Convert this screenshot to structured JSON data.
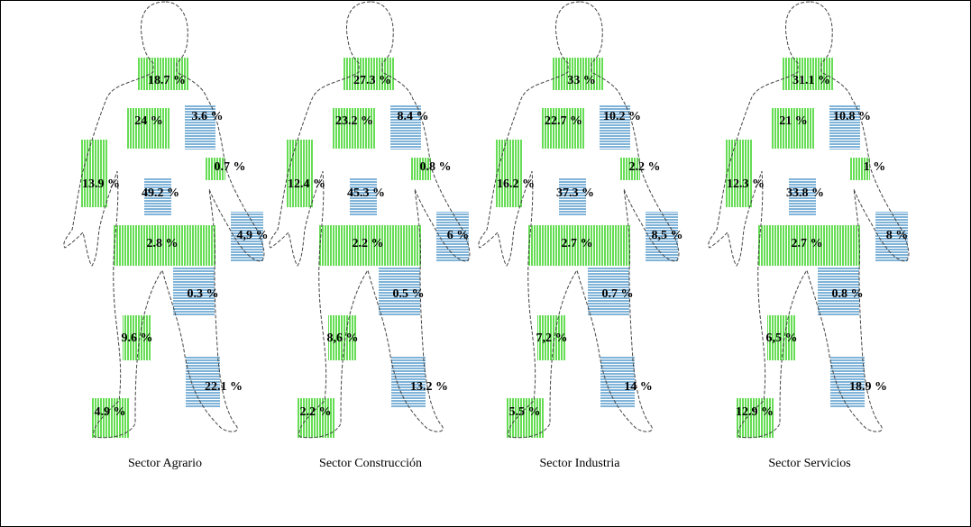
{
  "figures": [
    {
      "label": "Sector Agrario",
      "regions": [
        "18.7 %",
        "24 %",
        "3.6 %",
        "0.7 %",
        "13.9 %",
        "49.2 %",
        "4,9 %",
        "2.8 %",
        "0.3 %",
        "9.6 %",
        "22.1 %",
        "4.9 %"
      ]
    },
    {
      "label": "Sector Construcción",
      "regions": [
        "27.3 %",
        "23.2 %",
        "8.4 %",
        "0.8 %",
        "12.4 %",
        "45.3 %",
        "6 %",
        "2.2 %",
        "0.5 %",
        "8,6 %",
        "13.2 %",
        "2.2 %"
      ]
    },
    {
      "label": "Sector Industria",
      "regions": [
        "33 %",
        "22.7 %",
        "10.2 %",
        "2.2 %",
        "16.2 %",
        "37.3 %",
        "8,5 %",
        "2.7 %",
        "0.7 %",
        "7,2 %",
        "14 %",
        "5.5 %"
      ]
    },
    {
      "label": "Sector Servicios",
      "regions": [
        "31.1 %",
        "21 %",
        "10.8 %",
        "1 %",
        "12.3 %",
        "33.8 %",
        "8 %",
        "2.7 %",
        "0.8 %",
        "6,5 %",
        "18.9 %",
        "12.9 %"
      ]
    }
  ]
}
